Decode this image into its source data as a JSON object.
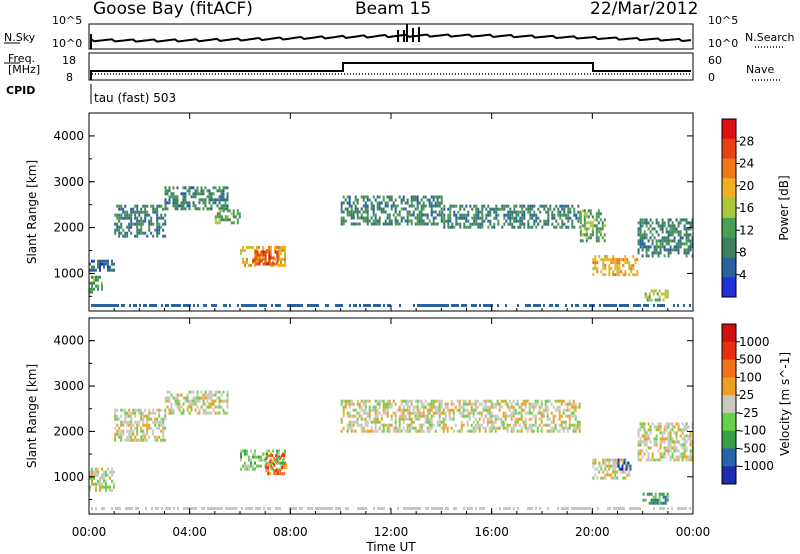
{
  "header": {
    "station": "Goose Bay (fitACF)",
    "beam": "Beam 15",
    "date": "22/Mar/2012"
  },
  "aux_panels": {
    "nsky_label": "N.Sky",
    "nsearch_label": "N.Search",
    "nsky_ticks": [
      "10^5",
      "10^0"
    ],
    "nsearch_ticks": [
      "10^5",
      "10^0"
    ],
    "freq_label_line1": "Freq.",
    "freq_label_line2": "[MHz]",
    "freq_ticks": [
      "18",
      "8"
    ],
    "nave_label": "Nave",
    "nave_ticks": [
      "60",
      "0"
    ],
    "cpid_label": "CPID",
    "cpid_value": "tau (fast) 503"
  },
  "colors": {
    "power_scale": [
      "#2030d8",
      "#2a62a0",
      "#3f8060",
      "#4aa050",
      "#a8c83a",
      "#f0b020",
      "#f07818",
      "#e84010",
      "#e01010"
    ],
    "velocity_scale": [
      "#1a2fb0",
      "#2b63a8",
      "#38a048",
      "#6ad048",
      "#c8c8c0",
      "#f0a020",
      "#f07018",
      "#e83010",
      "#d01010"
    ]
  },
  "chart_data": [
    {
      "type": "heatmap",
      "name": "power",
      "ylabel": "Slant Range [km]",
      "xlabel": "",
      "colorbar_label": "Power [dB]",
      "colorbar_ticks": [
        "28",
        "24",
        "20",
        "16",
        "12",
        "8",
        "4"
      ],
      "ylim": [
        180,
        4500
      ],
      "yticks": [
        "1000",
        "2000",
        "3000",
        "4000"
      ],
      "xticks": [
        "00:00",
        "04:00",
        "08:00",
        "12:00",
        "16:00",
        "20:00",
        "00:00"
      ],
      "echo_regions": [
        {
          "hours": [
            0.0,
            0.5
          ],
          "range_km": [
            600,
            950
          ],
          "level": 3
        },
        {
          "hours": [
            0.0,
            1.0
          ],
          "range_km": [
            1100,
            1300
          ],
          "level": 1
        },
        {
          "hours": [
            1.0,
            3.0
          ],
          "range_km": [
            1800,
            2500
          ],
          "level": 2
        },
        {
          "hours": [
            3.0,
            5.5
          ],
          "range_km": [
            2400,
            2900
          ],
          "level": 2
        },
        {
          "hours": [
            6.0,
            7.8
          ],
          "range_km": [
            1200,
            1600
          ],
          "level": 5
        },
        {
          "hours": [
            6.5,
            7.5
          ],
          "range_km": [
            1200,
            1500
          ],
          "level": 7
        },
        {
          "hours": [
            5.0,
            6.0
          ],
          "range_km": [
            2100,
            2400
          ],
          "level": 3
        },
        {
          "hours": [
            10.0,
            14.0
          ],
          "range_km": [
            2100,
            2700
          ],
          "level": 2
        },
        {
          "hours": [
            14.0,
            19.5
          ],
          "range_km": [
            2000,
            2500
          ],
          "level": 2
        },
        {
          "hours": [
            19.5,
            20.5
          ],
          "range_km": [
            1700,
            2400
          ],
          "level": 3
        },
        {
          "hours": [
            20.0,
            21.8
          ],
          "range_km": [
            1000,
            1400
          ],
          "level": 5
        },
        {
          "hours": [
            21.8,
            24.0
          ],
          "range_km": [
            1400,
            2200
          ],
          "level": 2
        },
        {
          "hours": [
            22.0,
            23.0
          ],
          "range_km": [
            450,
            650
          ],
          "level": 4
        }
      ]
    },
    {
      "type": "heatmap",
      "name": "velocity",
      "ylabel": "Slant Range [km]",
      "xlabel": "Time UT",
      "colorbar_label": "Velocity [m s^-1]",
      "colorbar_ticks": [
        "1000",
        "500",
        "100",
        "25",
        "-25",
        "-100",
        "-500",
        "-1000"
      ],
      "ylim": [
        180,
        4500
      ],
      "yticks": [
        "1000",
        "2000",
        "3000",
        "4000"
      ],
      "xticks": [
        "00:00",
        "04:00",
        "08:00",
        "12:00",
        "16:00",
        "20:00",
        "00:00"
      ],
      "echo_regions": [
        {
          "hours": [
            0.0,
            1.0
          ],
          "range_km": [
            700,
            1200
          ],
          "level": 4
        },
        {
          "hours": [
            1.0,
            3.0
          ],
          "range_km": [
            1800,
            2500
          ],
          "level": 4
        },
        {
          "hours": [
            3.0,
            5.5
          ],
          "range_km": [
            2400,
            2900
          ],
          "level": 4
        },
        {
          "hours": [
            6.0,
            7.8
          ],
          "range_km": [
            1200,
            1600
          ],
          "level": 3
        },
        {
          "hours": [
            7.0,
            7.8
          ],
          "range_km": [
            1100,
            1500
          ],
          "level": 6
        },
        {
          "hours": [
            10.0,
            19.5
          ],
          "range_km": [
            2000,
            2700
          ],
          "level": 4
        },
        {
          "hours": [
            20.0,
            21.5
          ],
          "range_km": [
            1000,
            1400
          ],
          "level": 4
        },
        {
          "hours": [
            21.0,
            21.5
          ],
          "range_km": [
            1200,
            1400
          ],
          "level": 0
        },
        {
          "hours": [
            21.8,
            24.0
          ],
          "range_km": [
            1400,
            2200
          ],
          "level": 4
        },
        {
          "hours": [
            22.0,
            23.0
          ],
          "range_km": [
            450,
            650
          ],
          "level": 2
        }
      ]
    }
  ]
}
